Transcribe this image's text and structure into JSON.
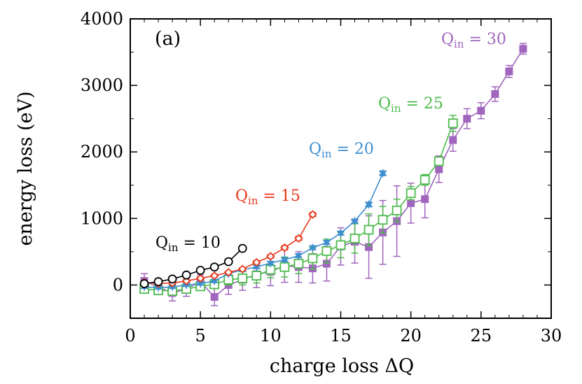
{
  "chart_data": {
    "type": "line",
    "panel_label": "(a)",
    "xlabel": "charge loss ΔQ",
    "ylabel": "energy loss (eV)",
    "xlim": [
      0,
      30
    ],
    "ylim": [
      -500,
      4000
    ],
    "x_ticks": [
      0,
      5,
      10,
      15,
      20,
      25,
      30
    ],
    "y_ticks": [
      0,
      1000,
      2000,
      3000,
      4000
    ],
    "grid": false,
    "series": [
      {
        "name": "Q",
        "sub": "in",
        "suffix": " = 10",
        "color": "#000000",
        "marker": "circle-open",
        "x": [
          1,
          2,
          3,
          4,
          5,
          6,
          7,
          8
        ],
        "y": [
          20,
          50,
          90,
          150,
          220,
          270,
          350,
          550
        ],
        "err": [
          15,
          15,
          15,
          15,
          15,
          20,
          20,
          25
        ]
      },
      {
        "name": "Q",
        "sub": "in",
        "suffix": " = 15",
        "color": "#e8391d",
        "marker": "diamond-open",
        "x": [
          1,
          2,
          3,
          4,
          5,
          6,
          7,
          8,
          9,
          10,
          11,
          12,
          13
        ],
        "y": [
          40,
          20,
          30,
          60,
          100,
          140,
          190,
          240,
          340,
          430,
          560,
          700,
          1060
        ],
        "err": [
          20,
          20,
          20,
          20,
          20,
          20,
          20,
          20,
          25,
          25,
          30,
          30,
          30
        ]
      },
      {
        "name": "Q",
        "sub": "in",
        "suffix": " = 20",
        "color": "#3f8fcf",
        "marker": "star",
        "x": [
          1,
          2,
          3,
          4,
          5,
          6,
          7,
          8,
          9,
          10,
          11,
          12,
          13,
          14,
          15,
          16,
          17,
          18
        ],
        "y": [
          -30,
          -40,
          -30,
          0,
          20,
          60,
          170,
          230,
          270,
          330,
          380,
          440,
          560,
          640,
          780,
          960,
          1210,
          1680
        ],
        "err": [
          20,
          20,
          20,
          20,
          20,
          25,
          25,
          25,
          25,
          25,
          30,
          30,
          30,
          30,
          30,
          30,
          35,
          35
        ]
      },
      {
        "name": "Q",
        "sub": "in",
        "suffix": " = 25",
        "color": "#4dbb4d",
        "marker": "square-open",
        "x": [
          1,
          2,
          3,
          4,
          5,
          6,
          7,
          8,
          9,
          10,
          11,
          12,
          13,
          14,
          15,
          16,
          17,
          18,
          19,
          20,
          21,
          22,
          23
        ],
        "y": [
          -60,
          -80,
          -90,
          -60,
          -20,
          10,
          80,
          100,
          140,
          230,
          270,
          320,
          400,
          510,
          600,
          700,
          830,
          980,
          1120,
          1380,
          1580,
          1860,
          2430
        ],
        "err": [
          40,
          40,
          50,
          50,
          50,
          60,
          80,
          100,
          110,
          120,
          150,
          150,
          160,
          180,
          190,
          220,
          240,
          200,
          170,
          100,
          80,
          60,
          120
        ]
      },
      {
        "name": "Q",
        "sub": "in",
        "suffix": " = 30",
        "color": "#a066bd",
        "marker": "square-filled",
        "x": [
          1,
          2,
          3,
          4,
          5,
          6,
          7,
          8,
          9,
          10,
          11,
          12,
          13,
          14,
          15,
          16,
          17,
          18,
          19,
          20,
          21,
          22,
          23,
          24,
          25,
          26,
          27,
          28
        ],
        "y": [
          60,
          -30,
          -120,
          -60,
          50,
          -180,
          0,
          80,
          160,
          200,
          290,
          270,
          250,
          320,
          580,
          650,
          570,
          790,
          960,
          1230,
          1290,
          1740,
          2180,
          2500,
          2620,
          2870,
          3210,
          3550
        ],
        "err": [
          110,
          100,
          120,
          110,
          100,
          130,
          140,
          160,
          200,
          210,
          250,
          230,
          220,
          260,
          280,
          320,
          470,
          480,
          530,
          300,
          280,
          200,
          170,
          150,
          120,
          110,
          90,
          80
        ]
      }
    ]
  }
}
